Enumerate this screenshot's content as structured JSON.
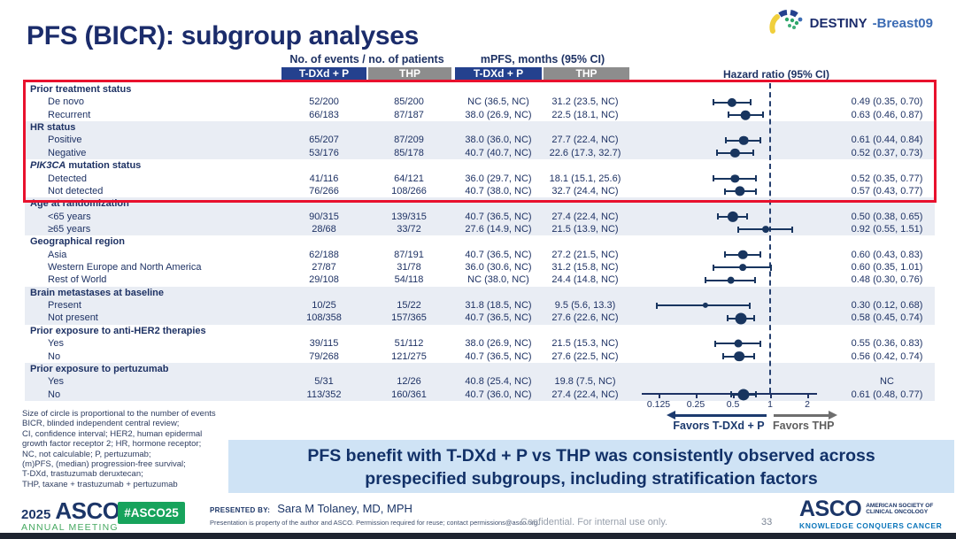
{
  "slide": {
    "title": "PFS (BICR): subgroup analyses",
    "program_logo": {
      "bold": "DESTINY",
      "rest": "-Breast09"
    }
  },
  "chart_data": {
    "type": "scatter",
    "subtype": "forest-plot",
    "title": "PFS (BICR): subgroup analyses",
    "note": "Size of circle is proportional to the number of events",
    "x_axis": {
      "scale": "log2",
      "ticks": [
        0.125,
        0.25,
        0.5,
        1,
        2
      ],
      "reference_line": 1
    },
    "columns": {
      "events_header": "No. of events / no. of patients",
      "mpfs_header": "mPFS, months (95% CI)",
      "hr_header": "Hazard ratio (95% CI)",
      "arm1_label": "T-DXd + P",
      "arm2_label": "THP"
    },
    "sections": [
      {
        "label": "Prior treatment status",
        "label_em": "",
        "shaded": false,
        "highlighted": true,
        "rows": [
          {
            "label": "De novo",
            "ev1": "52/200",
            "ev2": "85/200",
            "m1": "NC (36.5, NC)",
            "m2": "31.2 (23.5, NC)",
            "hr": 0.49,
            "lo": 0.35,
            "hi": 0.7,
            "hr_label": "0.49 (0.35, 0.70)"
          },
          {
            "label": "Recurrent",
            "ev1": "66/183",
            "ev2": "87/187",
            "m1": "38.0 (26.9, NC)",
            "m2": "22.5 (18.1, NC)",
            "hr": 0.63,
            "lo": 0.46,
            "hi": 0.87,
            "hr_label": "0.63 (0.46, 0.87)"
          }
        ]
      },
      {
        "label": "HR status",
        "label_em": "",
        "shaded": true,
        "highlighted": true,
        "rows": [
          {
            "label": "Positive",
            "ev1": "65/207",
            "ev2": "87/209",
            "m1": "38.0 (36.0, NC)",
            "m2": "27.7 (22.4, NC)",
            "hr": 0.61,
            "lo": 0.44,
            "hi": 0.84,
            "hr_label": "0.61 (0.44, 0.84)"
          },
          {
            "label": "Negative",
            "ev1": "53/176",
            "ev2": "85/178",
            "m1": "40.7 (40.7, NC)",
            "m2": "22.6 (17.3, 32.7)",
            "hr": 0.52,
            "lo": 0.37,
            "hi": 0.73,
            "hr_label": "0.52 (0.37, 0.73)"
          }
        ]
      },
      {
        "label": " mutation status",
        "label_em": "PIK3CA",
        "shaded": false,
        "highlighted": true,
        "rows": [
          {
            "label": "Detected",
            "ev1": "41/116",
            "ev2": "64/121",
            "m1": "36.0 (29.7, NC)",
            "m2": "18.1 (15.1, 25.6)",
            "hr": 0.52,
            "lo": 0.35,
            "hi": 0.77,
            "hr_label": "0.52 (0.35, 0.77)"
          },
          {
            "label": "Not detected",
            "ev1": "76/266",
            "ev2": "108/266",
            "m1": "40.7 (38.0, NC)",
            "m2": "32.7 (24.4, NC)",
            "hr": 0.57,
            "lo": 0.43,
            "hi": 0.77,
            "hr_label": "0.57 (0.43, 0.77)"
          }
        ]
      },
      {
        "label": "Age at randomization",
        "label_em": "",
        "shaded": true,
        "highlighted": false,
        "rows": [
          {
            "label": "<65 years",
            "ev1": "90/315",
            "ev2": "139/315",
            "m1": "40.7 (36.5, NC)",
            "m2": "27.4 (22.4, NC)",
            "hr": 0.5,
            "lo": 0.38,
            "hi": 0.65,
            "hr_label": "0.50 (0.38, 0.65)"
          },
          {
            "label": "≥65 years",
            "ev1": "28/68",
            "ev2": "33/72",
            "m1": "27.6 (14.9, NC)",
            "m2": "21.5 (13.9, NC)",
            "hr": 0.92,
            "lo": 0.55,
            "hi": 1.51,
            "hr_label": "0.92 (0.55, 1.51)"
          }
        ]
      },
      {
        "label": "Geographical region",
        "label_em": "",
        "shaded": false,
        "highlighted": false,
        "rows": [
          {
            "label": "Asia",
            "ev1": "62/188",
            "ev2": "87/191",
            "m1": "40.7 (36.5, NC)",
            "m2": "27.2 (21.5, NC)",
            "hr": 0.6,
            "lo": 0.43,
            "hi": 0.83,
            "hr_label": "0.60 (0.43, 0.83)"
          },
          {
            "label": "Western Europe and North America",
            "ev1": "27/87",
            "ev2": "31/78",
            "m1": "36.0 (30.6, NC)",
            "m2": "31.2 (15.8, NC)",
            "hr": 0.6,
            "lo": 0.35,
            "hi": 1.01,
            "hr_label": "0.60 (0.35, 1.01)"
          },
          {
            "label": "Rest of World",
            "ev1": "29/108",
            "ev2": "54/118",
            "m1": "NC (38.0, NC)",
            "m2": "24.4 (14.8, NC)",
            "hr": 0.48,
            "lo": 0.3,
            "hi": 0.76,
            "hr_label": "0.48 (0.30, 0.76)"
          }
        ]
      },
      {
        "label": "Brain metastases at baseline",
        "label_em": "",
        "shaded": true,
        "highlighted": false,
        "rows": [
          {
            "label": "Present",
            "ev1": "10/25",
            "ev2": "15/22",
            "m1": "31.8 (18.5, NC)",
            "m2": "9.5 (5.6, 13.3)",
            "hr": 0.3,
            "lo": 0.12,
            "hi": 0.68,
            "hr_label": "0.30 (0.12, 0.68)"
          },
          {
            "label": "Not present",
            "ev1": "108/358",
            "ev2": "157/365",
            "m1": "40.7 (36.5, NC)",
            "m2": "27.6 (22.6, NC)",
            "hr": 0.58,
            "lo": 0.45,
            "hi": 0.74,
            "hr_label": "0.58 (0.45, 0.74)"
          }
        ]
      },
      {
        "label": "Prior exposure to anti-HER2 therapies",
        "label_em": "",
        "shaded": false,
        "highlighted": false,
        "rows": [
          {
            "label": "Yes",
            "ev1": "39/115",
            "ev2": "51/112",
            "m1": "38.0 (26.9, NC)",
            "m2": "21.5 (15.3, NC)",
            "hr": 0.55,
            "lo": 0.36,
            "hi": 0.83,
            "hr_label": "0.55 (0.36, 0.83)"
          },
          {
            "label": "No",
            "ev1": "79/268",
            "ev2": "121/275",
            "m1": "40.7 (36.5, NC)",
            "m2": "27.6 (22.5, NC)",
            "hr": 0.56,
            "lo": 0.42,
            "hi": 0.74,
            "hr_label": "0.56 (0.42, 0.74)"
          }
        ]
      },
      {
        "label": "Prior exposure to pertuzumab",
        "label_em": "",
        "shaded": true,
        "highlighted": false,
        "rows": [
          {
            "label": "Yes",
            "ev1": "5/31",
            "ev2": "12/26",
            "m1": "40.8 (25.4, NC)",
            "m2": "19.8 (7.5, NC)",
            "hr": null,
            "lo": null,
            "hi": null,
            "hr_label": "NC"
          },
          {
            "label": "No",
            "ev1": "113/352",
            "ev2": "160/361",
            "m1": "40.7 (36.0, NC)",
            "m2": "27.4 (22.4, NC)",
            "hr": 0.61,
            "lo": 0.48,
            "hi": 0.77,
            "hr_label": "0.61 (0.48, 0.77)"
          }
        ]
      }
    ],
    "legend": {
      "favors_left": "Favors T-DXd + P",
      "favors_right": "Favors THP"
    }
  },
  "footnote_lines": [
    "Size of circle is proportional to the number of events",
    "BICR, blinded independent central review;",
    "CI, confidence interval; HER2, human epidermal",
    "growth factor receptor 2; HR, hormone receptor;",
    "NC, not calculable; P, pertuzumab;",
    "(m)PFS, (median) progression-free survival;",
    "T-DXd, trastuzumab deruxtecan;",
    "THP, taxane + trastuzumab + pertuzumab"
  ],
  "banner": {
    "line1": "PFS benefit with T-DXd + P vs THP was consistently observed across",
    "line2": "prespecified subgroups, including stratification factors"
  },
  "footer": {
    "year": "2025",
    "meeting_name": "ASCO",
    "meeting_sub": "ANNUAL MEETING",
    "hashtag": "#ASCO25",
    "presented_by_label": "PRESENTED BY:",
    "presenter": "Sara M Tolaney, MD, MPH",
    "permission": "Presentation is property of the author and ASCO. Permission required for reuse; contact permissions@asco.org.",
    "confidential": "Confidential. For internal use only.",
    "page_number": "33",
    "asco_logo": {
      "wordmark": "ASCO",
      "society_line1": "AMERICAN SOCIETY OF",
      "society_line2": "CLINICAL ONCOLOGY",
      "tagline": "KNOWLEDGE CONQUERS CANCER"
    }
  },
  "colors": {
    "navy_text": "#1e3264",
    "title_navy": "#1b2c6b",
    "arm_blue": "#24418e",
    "arm_gray": "#8d8d8d",
    "shaded_row": "#e9edf4",
    "highlight_red": "#e8112d",
    "banner_bg": "#cfe3f5",
    "asco_green": "#17a35c",
    "tagline_blue": "#0d76bb"
  }
}
